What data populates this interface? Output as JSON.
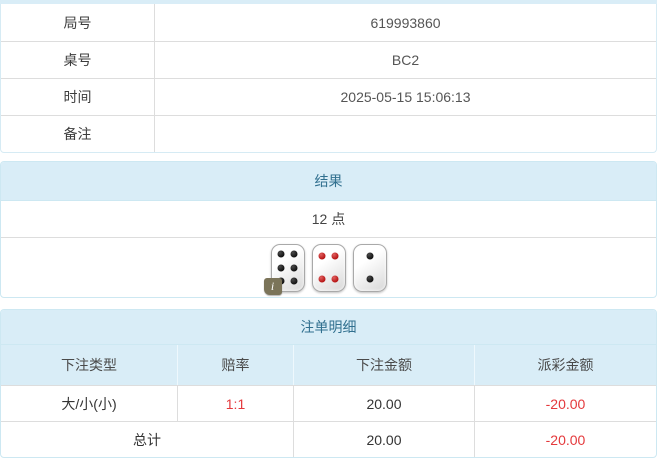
{
  "info": {
    "rows": [
      {
        "label": "局号",
        "value": "619993860"
      },
      {
        "label": "桌号",
        "value": "BC2"
      },
      {
        "label": "时间",
        "value": "2025-05-15 15:06:13"
      },
      {
        "label": "备注",
        "value": ""
      }
    ]
  },
  "result": {
    "heading": "结果",
    "points": "12 点",
    "dice": [
      {
        "value": 6,
        "color": "black"
      },
      {
        "value": 4,
        "color": "red"
      },
      {
        "value": 2,
        "color": "black"
      }
    ],
    "info_badge": "i"
  },
  "bets": {
    "heading": "注单明细",
    "columns": [
      "下注类型",
      "赔率",
      "下注金额",
      "派彩金额"
    ],
    "rows": [
      {
        "type": "大/小(小)",
        "odds": "1:1",
        "amount": "20.00",
        "payout": "-20.00"
      }
    ],
    "total": {
      "label": "总计",
      "amount": "20.00",
      "payout": "-20.00"
    }
  },
  "colors": {
    "heading_bg": "#d9edf7",
    "heading_text": "#31708f",
    "panel_border": "#cde8f2",
    "row_border": "#dddddd",
    "negative_text": "#e4393c",
    "pip_black": "#111111",
    "pip_red": "#b61414",
    "badge_bg": "#7b7459"
  }
}
